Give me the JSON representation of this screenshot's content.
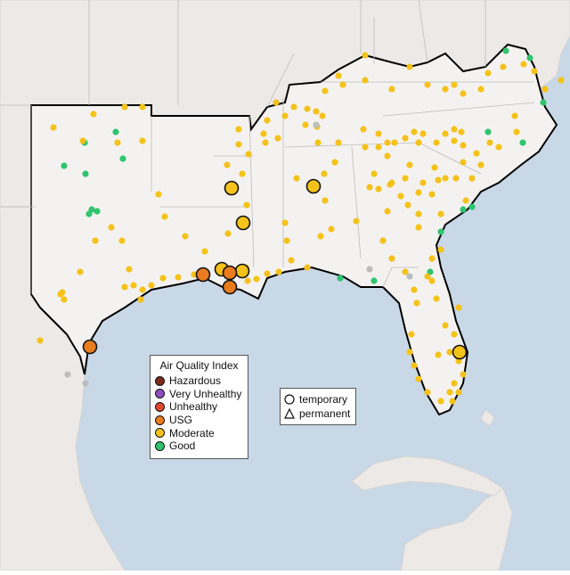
{
  "legend": {
    "title": "Air Quality Index",
    "categories": [
      {
        "label": "Hazardous",
        "color": "#7e2b1f"
      },
      {
        "label": "Very Unhealthy",
        "color": "#8e4fbf"
      },
      {
        "label": "Unhealthy",
        "color": "#e0472f"
      },
      {
        "label": "USG",
        "color": "#e87c1e"
      },
      {
        "label": "Moderate",
        "color": "#f4c21a"
      },
      {
        "label": "Good",
        "color": "#2fc46e"
      }
    ],
    "no_data_color": "#bdbdbd",
    "types": [
      {
        "label": "temporary",
        "icon": "circle-icon"
      },
      {
        "label": "permanent",
        "icon": "triangle-icon"
      }
    ]
  },
  "colors": {
    "water": "#c9d8e6",
    "land": "#ece9e6",
    "region_land": "#f4f2f0",
    "boundary": "#bdbdbd",
    "region_outline": "#000000"
  }
}
